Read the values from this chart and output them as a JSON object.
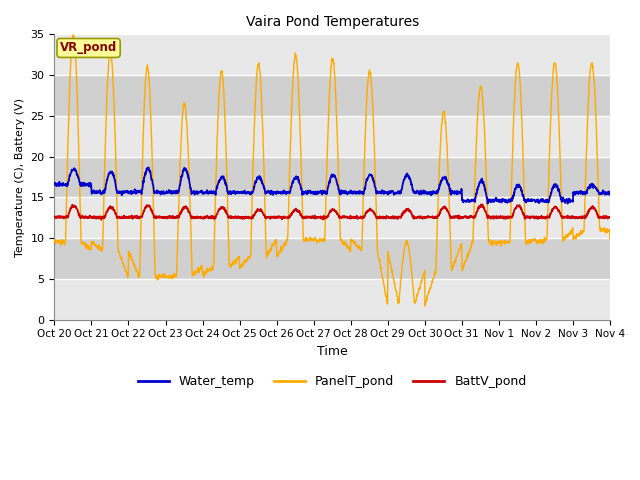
{
  "title": "Vaira Pond Temperatures",
  "ylabel": "Temperature (C), Battery (V)",
  "xlabel": "Time",
  "subtitle_box": "VR_pond",
  "ylim": [
    0,
    35
  ],
  "yticks": [
    0,
    5,
    10,
    15,
    20,
    25,
    30,
    35
  ],
  "legend_labels": [
    "Water_temp",
    "PanelT_pond",
    "BattV_pond"
  ],
  "water_temp_color": "#0000cc",
  "panel_temp_color": "#ffaa00",
  "batt_color": "#cc0000",
  "fig_bg": "#ffffff",
  "plot_bg": "#e8e8e8",
  "band_color": "#d0d0d0",
  "grid_color": "#ffffff",
  "tick_labels": [
    "Oct 20",
    "Oct 21",
    "Oct 22",
    "Oct 23",
    "Oct 24",
    "Oct 25",
    "Oct 26",
    "Oct 27",
    "Oct 28",
    "Oct 29",
    "Oct 30",
    "Oct 31",
    "Nov 1",
    "Nov 2",
    "Nov 3",
    "Nov 4"
  ],
  "panel_peaks": [
    35.0,
    33.0,
    31.0,
    26.5,
    30.5,
    31.5,
    32.5,
    32.0,
    30.5,
    9.5,
    25.5,
    28.5,
    31.5,
    31.5,
    31.5
  ],
  "panel_troughs": [
    9.5,
    8.5,
    5.2,
    5.5,
    6.5,
    7.8,
    9.8,
    9.8,
    8.5,
    1.8,
    6.0,
    9.5,
    9.5,
    9.8,
    11.0
  ],
  "water_peaks": [
    18.5,
    18.2,
    18.5,
    18.5,
    17.5,
    17.5,
    17.5,
    17.8,
    17.8,
    17.8,
    17.5,
    17.0,
    16.5,
    16.5,
    16.5
  ],
  "water_troughs": [
    16.5,
    15.5,
    15.5,
    15.5,
    15.5,
    15.5,
    15.5,
    15.5,
    15.5,
    15.5,
    15.5,
    14.5,
    14.5,
    14.5,
    15.5
  ],
  "batt_peaks": [
    14.0,
    13.8,
    14.0,
    13.8,
    13.8,
    13.5,
    13.5,
    13.5,
    13.5,
    13.5,
    13.8,
    14.0,
    14.0,
    13.8,
    13.8
  ],
  "batt_troughs": [
    12.5,
    12.5,
    12.5,
    12.5,
    12.5,
    12.5,
    12.5,
    12.5,
    12.5,
    12.5,
    12.5,
    12.5,
    12.5,
    12.5,
    12.5
  ],
  "n_days": 15,
  "n_pts": 1800
}
